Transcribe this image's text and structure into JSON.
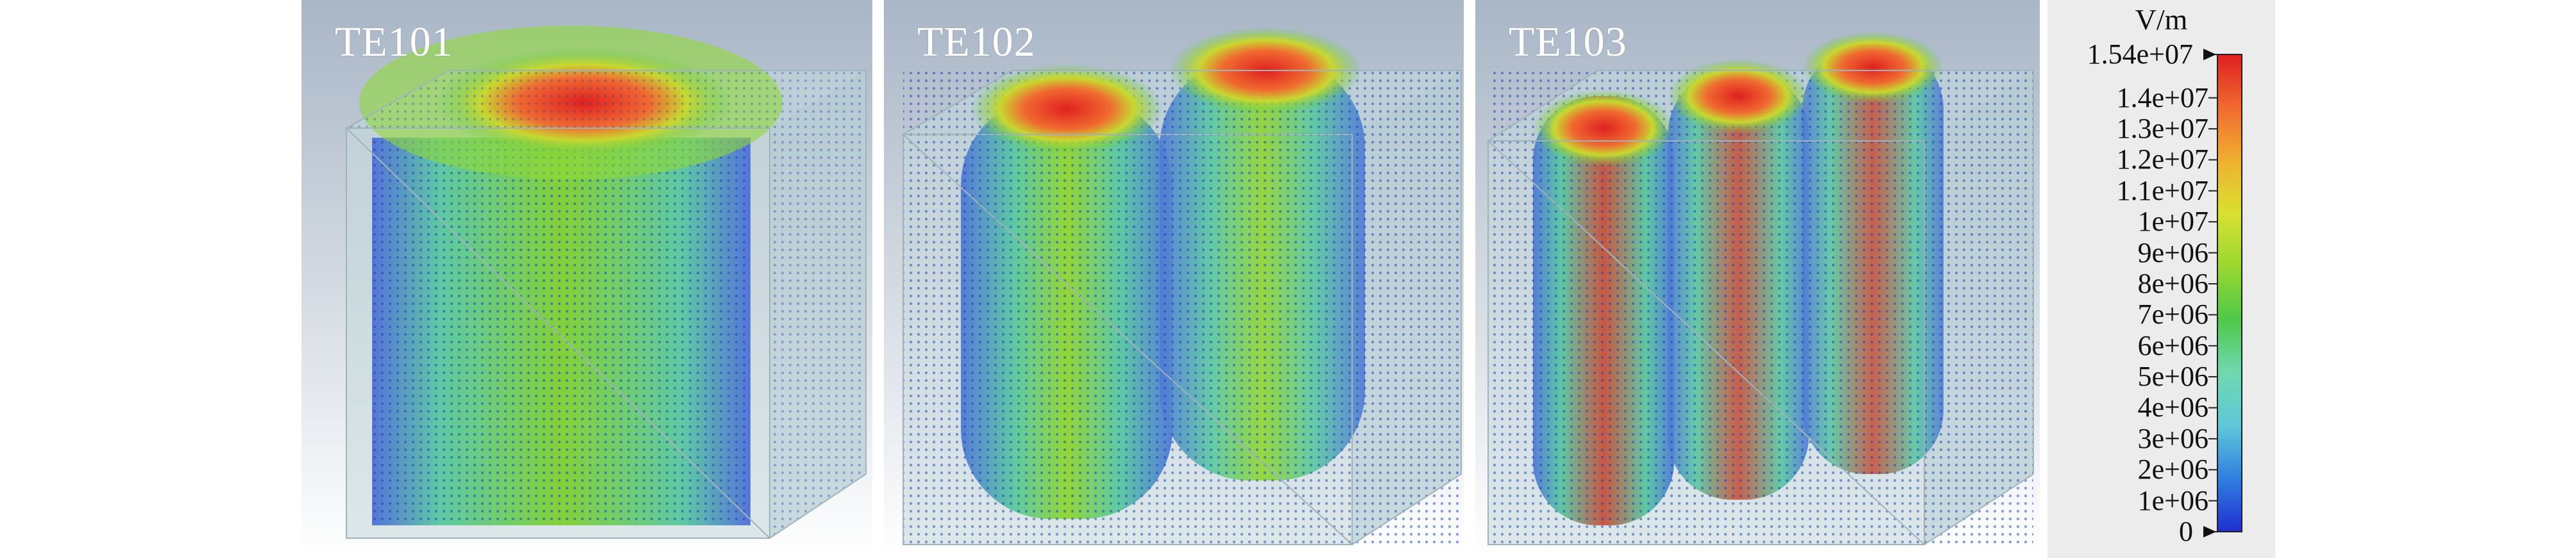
{
  "panels": [
    {
      "label": "TE101",
      "lobes": 1
    },
    {
      "label": "TE102",
      "lobes": 2
    },
    {
      "label": "TE103",
      "lobes": 3
    }
  ],
  "legend": {
    "unit": "V/m",
    "ticks": [
      {
        "value": 15400000,
        "label": "1.54e+07"
      },
      {
        "value": 14000000,
        "label": "1.4e+07"
      },
      {
        "value": 13000000,
        "label": "1.3e+07"
      },
      {
        "value": 12000000,
        "label": "1.2e+07"
      },
      {
        "value": 11000000,
        "label": "1.1e+07"
      },
      {
        "value": 10000000,
        "label": "1e+07"
      },
      {
        "value": 9000000,
        "label": "9e+06"
      },
      {
        "value": 8000000,
        "label": "8e+06"
      },
      {
        "value": 7000000,
        "label": "7e+06"
      },
      {
        "value": 6000000,
        "label": "6e+06"
      },
      {
        "value": 5000000,
        "label": "5e+06"
      },
      {
        "value": 4000000,
        "label": "4e+06"
      },
      {
        "value": 3000000,
        "label": "3e+06"
      },
      {
        "value": 2000000,
        "label": "2e+06"
      },
      {
        "value": 1000000,
        "label": "1e+06"
      },
      {
        "value": 0,
        "label": "0"
      }
    ],
    "max": 15400000,
    "colors": [
      "#1f2fd0",
      "#2f7fe0",
      "#5fc8d8",
      "#6fd8b0",
      "#4fc848",
      "#98d830",
      "#d8e030",
      "#f0b030",
      "#f06a30",
      "#e02020"
    ]
  }
}
